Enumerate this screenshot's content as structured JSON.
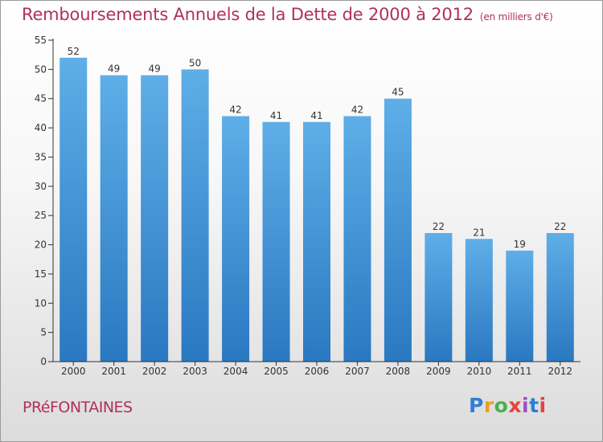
{
  "title": "Remboursements Annuels de la Dette de 2000 à 2012",
  "unit": "(en milliers d'€)",
  "commune": "PRéFONTAINES",
  "logo": {
    "text": "Proxiti",
    "colors": [
      "#2e7fd6",
      "#e8a020",
      "#4caf50",
      "#e84040",
      "#9c4fc8",
      "#2e7fd6",
      "#e84040"
    ]
  },
  "colors": {
    "bar_top": "#5eaee8",
    "bar_bottom": "#2a78c0",
    "title": "#b03060",
    "axis": "#333333"
  },
  "chart_data": {
    "type": "bar",
    "categories": [
      "2000",
      "2001",
      "2002",
      "2003",
      "2004",
      "2005",
      "2006",
      "2007",
      "2008",
      "2009",
      "2010",
      "2011",
      "2012"
    ],
    "values": [
      52,
      49,
      49,
      50,
      42,
      41,
      41,
      42,
      45,
      22,
      21,
      19,
      22
    ],
    "ylim": [
      0,
      55
    ],
    "yticks": [
      0,
      5,
      10,
      15,
      20,
      25,
      30,
      35,
      40,
      45,
      50,
      55
    ],
    "grid": false,
    "xlabel": "",
    "ylabel": ""
  }
}
